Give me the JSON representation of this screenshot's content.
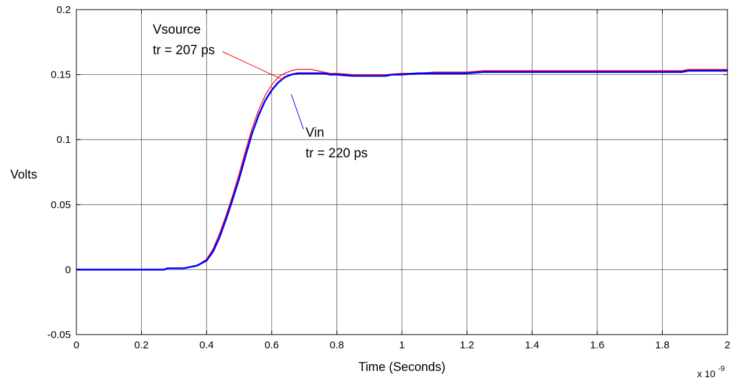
{
  "chart_data": {
    "type": "line",
    "xlabel": "Time (Seconds)",
    "ylabel": "Volts",
    "x_exponent_base": "x 10",
    "x_exponent_power": "-9",
    "xlim": [
      0,
      2
    ],
    "ylim": [
      -0.05,
      0.2
    ],
    "x_ticks": [
      0,
      0.2,
      0.4,
      0.6,
      0.8,
      1,
      1.2,
      1.4,
      1.6,
      1.8,
      2
    ],
    "x_tick_labels": [
      "0",
      "0.2",
      "0.4",
      "0.6",
      "0.8",
      "1",
      "1.2",
      "1.4",
      "1.6",
      "1.8",
      "2"
    ],
    "y_ticks": [
      -0.05,
      0,
      0.05,
      0.1,
      0.15,
      0.2
    ],
    "y_tick_labels": [
      "-0.05",
      "0",
      "0.05",
      "0.1",
      "0.15",
      "0.2"
    ],
    "grid": true,
    "annotations": [
      {
        "name": "Vsource",
        "text_line1": "Vsource",
        "text_line2": "tr = 207 ps",
        "point": [
          0.635,
          0.146
        ],
        "color": "#ff0000"
      },
      {
        "name": "Vin",
        "text_line1": "Vin",
        "text_line2": "tr = 220 ps",
        "point": [
          0.66,
          0.135
        ],
        "color": "#0000ff"
      }
    ],
    "series": [
      {
        "color": "#ff0000",
        "width": 1.2,
        "x": [
          0,
          0.1,
          0.2,
          0.27,
          0.28,
          0.33,
          0.35,
          0.37,
          0.4,
          0.42,
          0.44,
          0.46,
          0.48,
          0.5,
          0.52,
          0.54,
          0.56,
          0.58,
          0.6,
          0.62,
          0.64,
          0.66,
          0.68,
          0.7,
          0.72,
          0.74,
          0.76,
          0.78,
          0.8,
          0.85,
          0.9,
          0.95,
          1.0,
          1.05,
          1.1,
          1.2,
          1.25,
          1.3,
          1.4,
          1.5,
          1.6,
          1.7,
          1.8,
          1.86,
          1.88,
          2.0
        ],
        "y": [
          0.0,
          0.0,
          0.0,
          0.0,
          0.001,
          0.001,
          0.002,
          0.003,
          0.008,
          0.016,
          0.028,
          0.042,
          0.057,
          0.074,
          0.092,
          0.109,
          0.123,
          0.134,
          0.142,
          0.148,
          0.151,
          0.153,
          0.154,
          0.154,
          0.154,
          0.153,
          0.152,
          0.151,
          0.151,
          0.15,
          0.15,
          0.15,
          0.151,
          0.151,
          0.152,
          0.152,
          0.153,
          0.153,
          0.153,
          0.153,
          0.153,
          0.153,
          0.153,
          0.153,
          0.154,
          0.154
        ]
      },
      {
        "color": "#0000ff",
        "width": 2.6,
        "x": [
          0,
          0.1,
          0.2,
          0.27,
          0.28,
          0.33,
          0.35,
          0.37,
          0.4,
          0.42,
          0.44,
          0.46,
          0.48,
          0.5,
          0.52,
          0.54,
          0.56,
          0.58,
          0.6,
          0.62,
          0.64,
          0.66,
          0.68,
          0.7,
          0.72,
          0.74,
          0.76,
          0.78,
          0.8,
          0.85,
          0.9,
          0.95,
          0.97,
          1.0,
          1.05,
          1.1,
          1.2,
          1.25,
          1.3,
          1.4,
          1.5,
          1.6,
          1.7,
          1.8,
          1.86,
          1.88,
          2.0
        ],
        "y": [
          0.0,
          0.0,
          0.0,
          0.0,
          0.001,
          0.001,
          0.002,
          0.003,
          0.007,
          0.014,
          0.025,
          0.039,
          0.054,
          0.07,
          0.088,
          0.105,
          0.119,
          0.13,
          0.138,
          0.144,
          0.148,
          0.15,
          0.151,
          0.151,
          0.151,
          0.151,
          0.151,
          0.15,
          0.15,
          0.149,
          0.149,
          0.149,
          0.15,
          0.15,
          0.151,
          0.151,
          0.151,
          0.152,
          0.152,
          0.152,
          0.152,
          0.152,
          0.152,
          0.152,
          0.152,
          0.153,
          0.153
        ]
      }
    ]
  }
}
